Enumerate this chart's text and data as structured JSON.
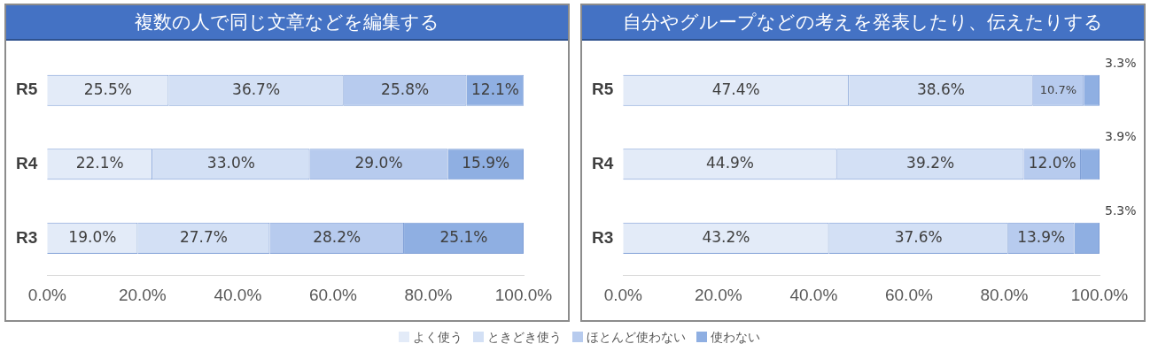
{
  "chart_data": [
    {
      "type": "bar",
      "orientation": "horizontal",
      "stacked": true,
      "title": "複数の人で同じ文章などを編集する",
      "categories": [
        "R5",
        "R4",
        "R3"
      ],
      "xlim": [
        0,
        100
      ],
      "xticks": [
        {
          "value": 0,
          "label": "0.0%"
        },
        {
          "value": 20,
          "label": "20.0%"
        },
        {
          "value": 40,
          "label": "40.0%"
        },
        {
          "value": 60,
          "label": "60.0%"
        },
        {
          "value": 80,
          "label": "80.0%"
        },
        {
          "value": 100,
          "label": "100.0%"
        }
      ],
      "legend": "bottom",
      "series": [
        {
          "name": "よく使う",
          "color": "#e3ebf8",
          "values": [
            25.5,
            22.1,
            19.0
          ],
          "value_labels": [
            "25.5%",
            "22.1%",
            "19.0%"
          ]
        },
        {
          "name": "ときどき使う",
          "color": "#d3e0f5",
          "values": [
            36.7,
            33.0,
            27.7
          ],
          "value_labels": [
            "36.7%",
            "33.0%",
            "27.7%"
          ]
        },
        {
          "name": "ほとんど使わない",
          "color": "#b7cbee",
          "values": [
            25.8,
            29.0,
            28.2
          ],
          "value_labels": [
            "25.8%",
            "29.0%",
            "28.2%"
          ]
        },
        {
          "name": "使わない",
          "color": "#8fafe2",
          "values": [
            12.1,
            15.9,
            25.1
          ],
          "value_labels": [
            "12.1%",
            "15.9%",
            "25.1%"
          ]
        }
      ]
    },
    {
      "type": "bar",
      "orientation": "horizontal",
      "stacked": true,
      "title": "自分やグループなどの考えを発表したり、伝えたりする",
      "categories": [
        "R5",
        "R4",
        "R3"
      ],
      "xlim": [
        0,
        100
      ],
      "xticks": [
        {
          "value": 0,
          "label": "0.0%"
        },
        {
          "value": 20,
          "label": "20.0%"
        },
        {
          "value": 40,
          "label": "40.0%"
        },
        {
          "value": 60,
          "label": "60.0%"
        },
        {
          "value": 80,
          "label": "80.0%"
        },
        {
          "value": 100,
          "label": "100.0%"
        }
      ],
      "series": [
        {
          "color": "#e3ebf8",
          "values": [
            47.4,
            44.9,
            43.2
          ],
          "value_labels": [
            "47.4%",
            "44.9%",
            "43.2%"
          ]
        },
        {
          "color": "#d3e0f5",
          "values": [
            38.6,
            39.2,
            37.6
          ],
          "value_labels": [
            "38.6%",
            "39.2%",
            "37.6%"
          ]
        },
        {
          "color": "#b7cbee",
          "values": [
            10.7,
            12.0,
            13.9
          ],
          "value_labels": [
            "10.7%",
            "12.0%",
            "13.9%"
          ]
        },
        {
          "color": "#8fafe2",
          "values": [
            3.3,
            3.9,
            5.3
          ],
          "value_labels": [
            "3.3%",
            "3.9%",
            "5.3%"
          ]
        }
      ]
    }
  ]
}
